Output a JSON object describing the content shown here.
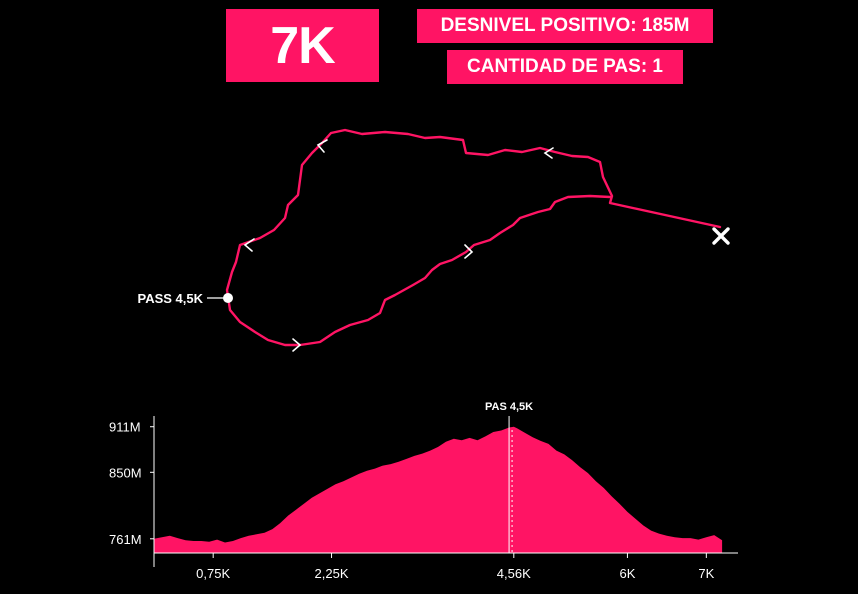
{
  "header": {
    "distance": "7K",
    "elevation_gain": "DESNIVEL POSITIVO: 185M",
    "pass_count": "CANTIDAD DE PAS: 1"
  },
  "map": {
    "pass_label": "PASS 4,5K",
    "route_color": "#ff1464",
    "finish_icon": "x-mark-icon",
    "direction_icon": "chevron-arrow-icon"
  },
  "chart_data": {
    "type": "area",
    "title": "",
    "xlabel": "",
    "ylabel": "",
    "x_ticks": [
      {
        "value": 0.75,
        "label": "0,75K"
      },
      {
        "value": 2.25,
        "label": "2,25K"
      },
      {
        "value": 4.56,
        "label": "4,56K"
      },
      {
        "value": 6,
        "label": "6K"
      },
      {
        "value": 7,
        "label": "7K"
      }
    ],
    "y_ticks": [
      {
        "value": 761,
        "label": "761M"
      },
      {
        "value": 850,
        "label": "850M"
      },
      {
        "value": 911,
        "label": "911M"
      }
    ],
    "xlim": [
      0,
      7.3
    ],
    "ylim": [
      742,
      920
    ],
    "marker": {
      "x": 4.5,
      "label": "PAS 4,5K"
    },
    "fill_color": "#ff1464",
    "grid": false,
    "series": [
      {
        "x": [
          0,
          0.1,
          0.2,
          0.3,
          0.4,
          0.5,
          0.6,
          0.7,
          0.8,
          0.9,
          1.0,
          1.1,
          1.2,
          1.3,
          1.4,
          1.5,
          1.6,
          1.7,
          1.8,
          1.9,
          2.0,
          2.1,
          2.2,
          2.3,
          2.4,
          2.5,
          2.6,
          2.7,
          2.8,
          2.9,
          3.0,
          3.1,
          3.2,
          3.3,
          3.4,
          3.5,
          3.6,
          3.7,
          3.8,
          3.9,
          4.0,
          4.1,
          4.2,
          4.3,
          4.4,
          4.5,
          4.56,
          4.6,
          4.7,
          4.8,
          4.9,
          5.0,
          5.1,
          5.2,
          5.3,
          5.4,
          5.5,
          5.6,
          5.7,
          5.8,
          5.9,
          6.0,
          6.1,
          6.2,
          6.3,
          6.4,
          6.5,
          6.6,
          6.7,
          6.8,
          6.9,
          7.0,
          7.1,
          7.2
        ],
        "y": [
          761,
          763,
          765,
          762,
          759,
          758,
          758,
          757,
          760,
          756,
          758,
          762,
          765,
          767,
          769,
          774,
          782,
          792,
          800,
          808,
          816,
          822,
          828,
          834,
          838,
          843,
          848,
          852,
          855,
          859,
          861,
          864,
          868,
          872,
          875,
          879,
          884,
          891,
          895,
          893,
          896,
          893,
          898,
          904,
          906,
          910,
          911,
          909,
          903,
          897,
          892,
          888,
          879,
          874,
          866,
          857,
          849,
          838,
          829,
          818,
          808,
          797,
          788,
          779,
          772,
          768,
          765,
          763,
          762,
          762,
          760,
          763,
          766,
          759
        ]
      }
    ]
  }
}
